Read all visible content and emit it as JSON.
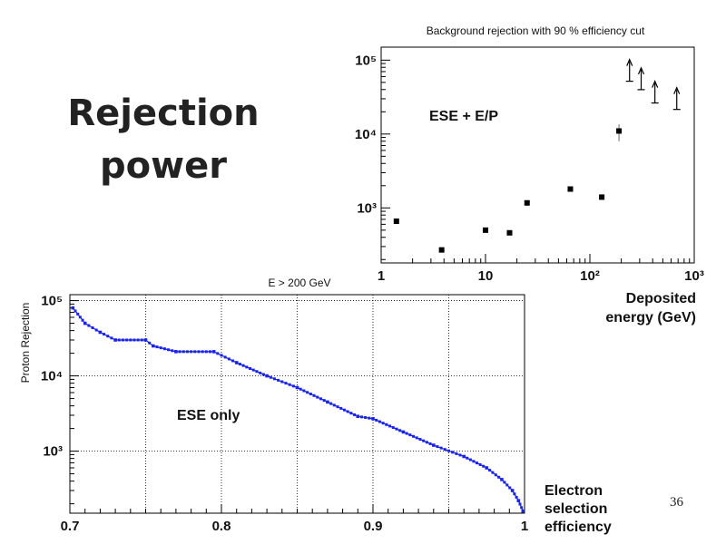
{
  "slide": {
    "title_line1": "Rejection",
    "title_line2": "power",
    "page_number": "36"
  },
  "chart_data": [
    {
      "type": "scatter",
      "title": "Background rejection with 90 % efficiency cut",
      "annotation": "ESE + E/P",
      "xlabel_lines": [
        "Deposited",
        "energy (GeV)"
      ],
      "xscale": "log",
      "yscale": "log",
      "xlim": [
        1,
        1000
      ],
      "ylim": [
        180,
        150000
      ],
      "x_ticks": [
        "1",
        "10",
        "10²",
        "10³"
      ],
      "y_ticks": [
        "10³",
        "10⁴",
        "10⁵"
      ],
      "grid": false,
      "points": [
        {
          "x": 1.4,
          "y": 660,
          "err_lo": 0,
          "err_hi": 0
        },
        {
          "x": 3.8,
          "y": 270,
          "err_lo": 0,
          "err_hi": 0
        },
        {
          "x": 10,
          "y": 500,
          "err_lo": 0,
          "err_hi": 0
        },
        {
          "x": 17,
          "y": 460,
          "err_lo": 0,
          "err_hi": 0
        },
        {
          "x": 25,
          "y": 1170,
          "err_lo": 1060,
          "err_hi": 1270
        },
        {
          "x": 65,
          "y": 1800,
          "err_lo": 1700,
          "err_hi": 1900
        },
        {
          "x": 130,
          "y": 1400,
          "err_lo": 0,
          "err_hi": 0
        },
        {
          "x": 190,
          "y": 11000,
          "err_lo": 8000,
          "err_hi": 13500
        }
      ],
      "lower_limits": [
        {
          "x": 240,
          "y": 65000
        },
        {
          "x": 310,
          "y": 50000
        },
        {
          "x": 420,
          "y": 33000
        },
        {
          "x": 680,
          "y": 27000
        }
      ]
    },
    {
      "type": "line",
      "title": "E > 200 GeV",
      "annotation": "ESE only",
      "ylabel": "Proton Rejection",
      "xlabel_lines": [
        "Electron",
        "selection",
        "efficiency"
      ],
      "yscale": "log",
      "xlim": [
        0.7,
        1.0
      ],
      "ylim": [
        150,
        120000
      ],
      "x_ticks": [
        "0.7",
        "0.8",
        "0.9",
        "1"
      ],
      "y_ticks": [
        "10³",
        "10⁴",
        "10⁵"
      ],
      "grid": true,
      "x": [
        0.702,
        0.71,
        0.72,
        0.73,
        0.75,
        0.755,
        0.77,
        0.795,
        0.81,
        0.83,
        0.85,
        0.87,
        0.89,
        0.9,
        0.92,
        0.94,
        0.96,
        0.975,
        0.985,
        0.992,
        0.996,
        0.999
      ],
      "y": [
        80000,
        50000,
        38000,
        30000,
        30000,
        25000,
        21000,
        21000,
        15000,
        10000,
        7000,
        4500,
        2900,
        2700,
        1800,
        1200,
        850,
        600,
        420,
        300,
        220,
        160
      ],
      "series_color": "#1a24e8"
    }
  ]
}
